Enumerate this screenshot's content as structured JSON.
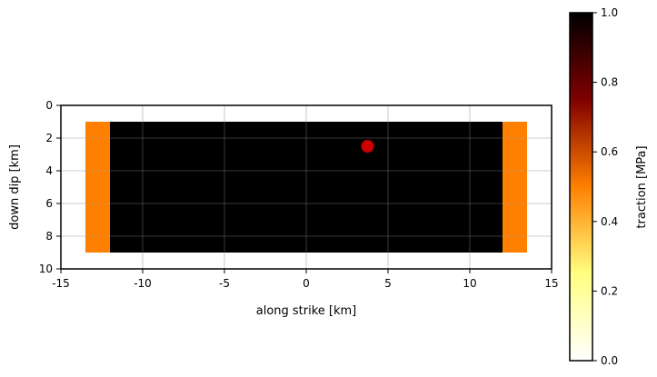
{
  "chart_data": {
    "type": "heatmap",
    "title": "",
    "xlabel": "along strike [km]",
    "ylabel": "down dip [km]",
    "xlim": [
      -15,
      15
    ],
    "ylim": [
      10,
      0
    ],
    "y_inverted": true,
    "aspect": "equal",
    "grid": true,
    "x_ticks": [
      -15,
      -10,
      -5,
      0,
      5,
      10,
      15
    ],
    "x_tick_labels": [
      "-15",
      "-10",
      "-5",
      "0",
      "5",
      "10",
      "15"
    ],
    "y_ticks": [
      0,
      2,
      4,
      6,
      8,
      10
    ],
    "y_tick_labels": [
      "0",
      "2",
      "4",
      "6",
      "8",
      "10"
    ],
    "patches": [
      {
        "x_range": [
          -13.5,
          -12
        ],
        "y_range": [
          1,
          9
        ],
        "value": 0.5
      },
      {
        "x_range": [
          -12,
          12
        ],
        "y_range": [
          1,
          9
        ],
        "value": 1.0
      },
      {
        "x_range": [
          12,
          13.5
        ],
        "y_range": [
          1,
          9
        ],
        "value": 0.5
      }
    ],
    "marker": {
      "x": 3.75,
      "y": 2.5,
      "color": "#cc0000"
    },
    "colorbar": {
      "label": "traction [MPa]",
      "colormap": "afmhot_r",
      "range": [
        0,
        1
      ],
      "ticks": [
        0.0,
        0.2,
        0.4,
        0.6,
        0.8,
        1.0
      ],
      "tick_labels": [
        "0.0",
        "0.2",
        "0.4",
        "0.6",
        "0.8",
        "1.0"
      ],
      "colors": [
        "#ffffff",
        "#ffff80",
        "#ff8000",
        "#800000",
        "#000000"
      ]
    }
  }
}
